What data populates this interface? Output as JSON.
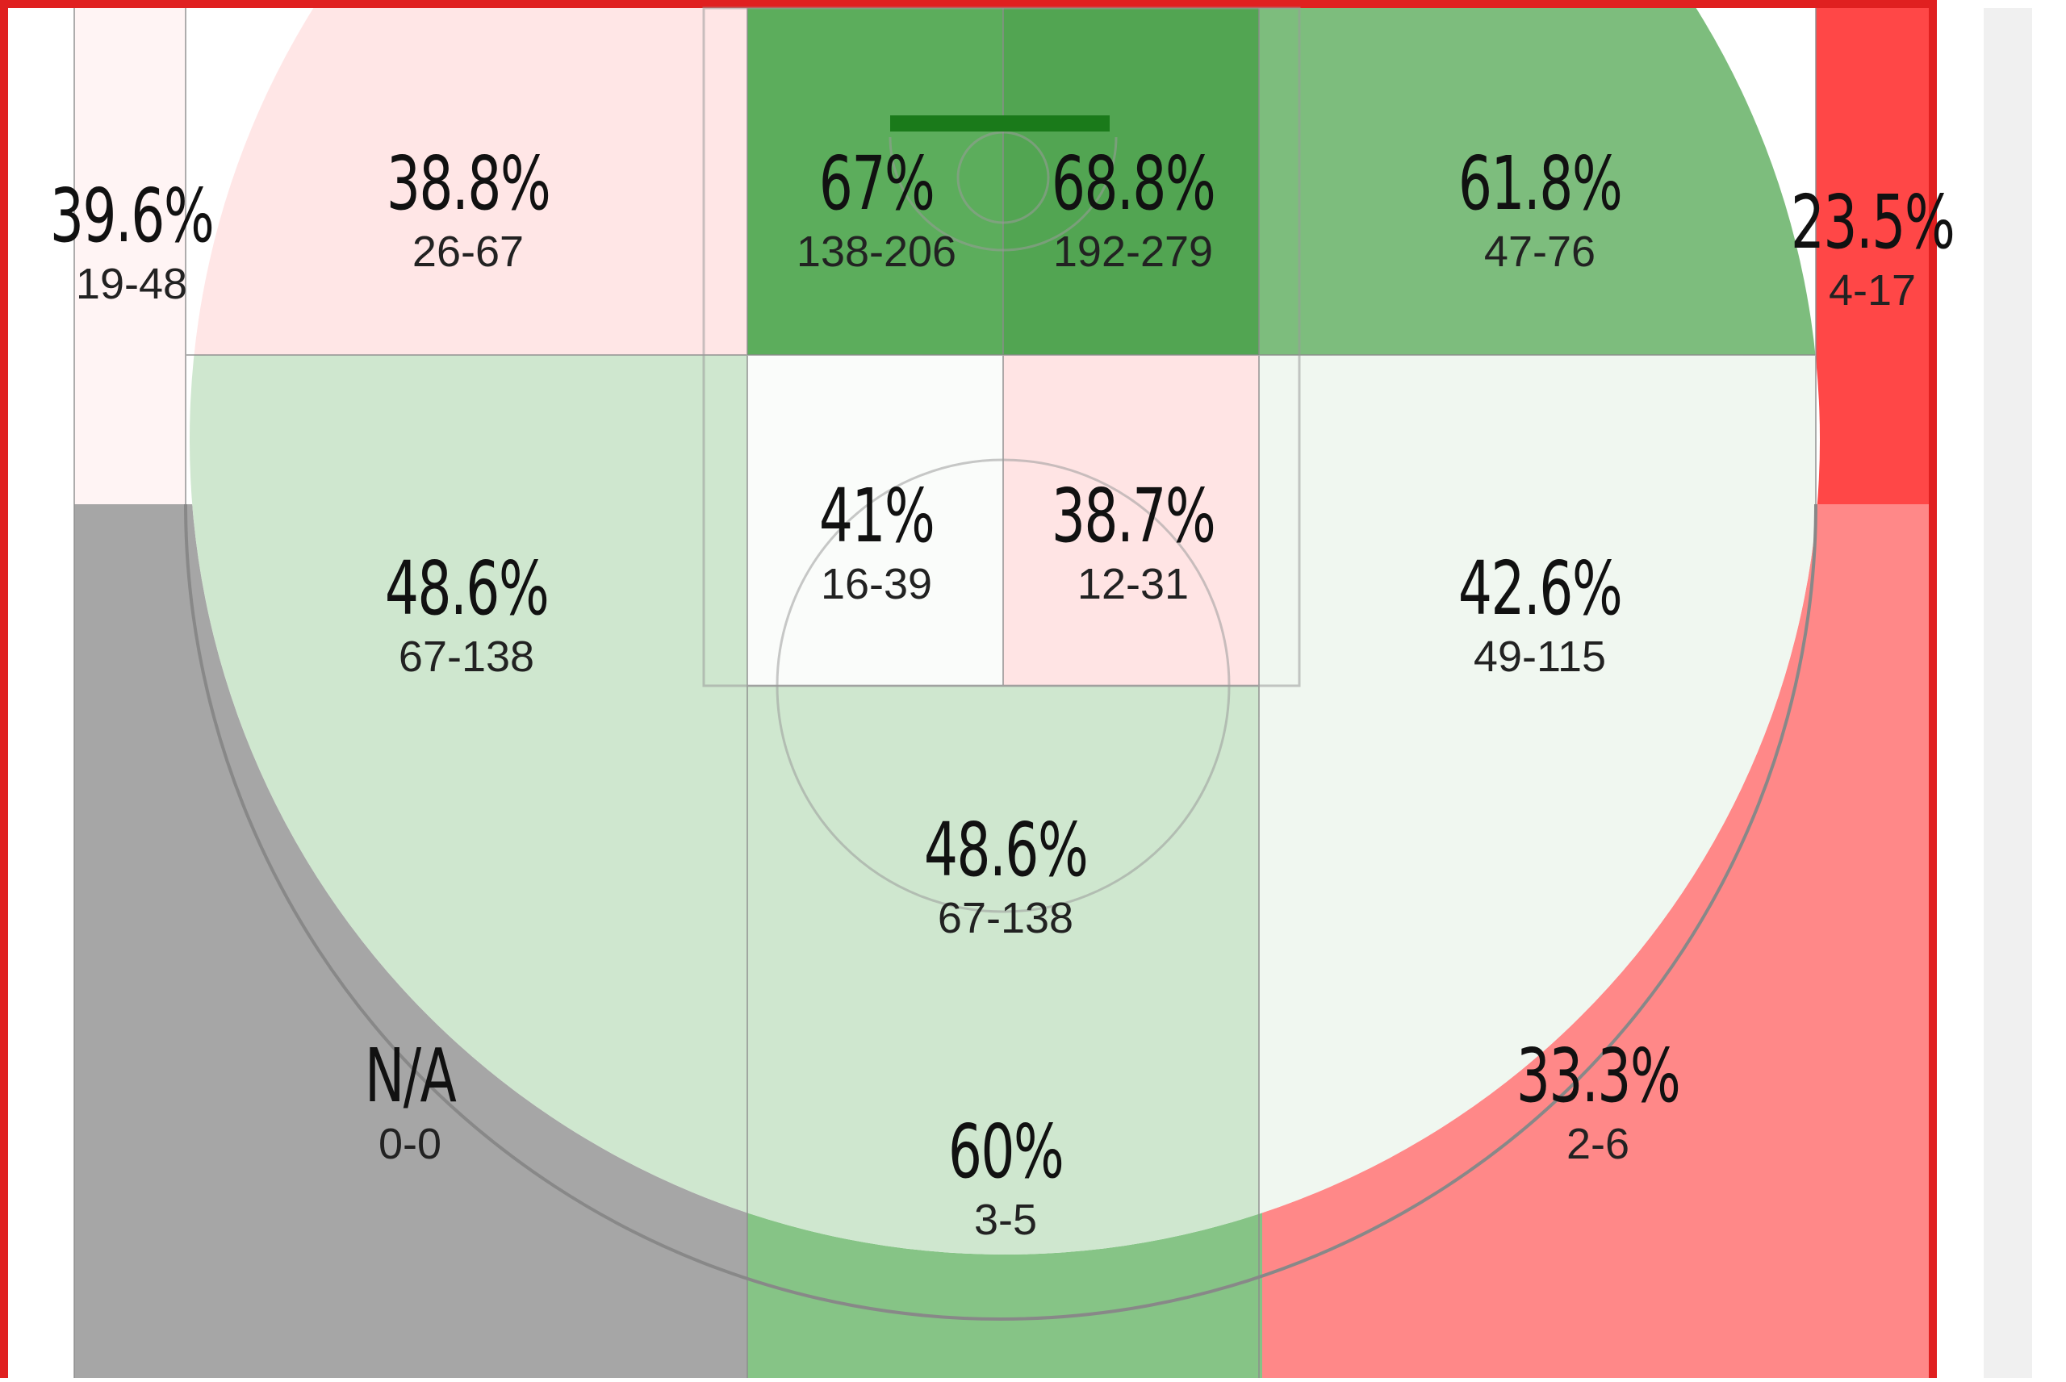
{
  "zones": [
    {
      "id": "left-corner-three",
      "pct": "39.6%",
      "record": "19-48",
      "color": "#fff4f4"
    },
    {
      "id": "left-wing-long-two",
      "pct": "38.8%",
      "record": "26-67",
      "color": "#ffe6e6"
    },
    {
      "id": "restricted-left",
      "pct": "67%",
      "record": "138-206",
      "color": "#5cad5c"
    },
    {
      "id": "restricted-right",
      "pct": "68.8%",
      "record": "192-279",
      "color": "#52a552"
    },
    {
      "id": "right-wing-long-two",
      "pct": "61.8%",
      "record": "47-76",
      "color": "#7dbd7d"
    },
    {
      "id": "right-corner-three",
      "pct": "23.5%",
      "record": "4-17",
      "color": "#ff4747"
    },
    {
      "id": "paint-left",
      "pct": "41%",
      "record": "16-39",
      "color": "#fafcfa"
    },
    {
      "id": "paint-right",
      "pct": "38.7%",
      "record": "12-31",
      "color": "#ffe4e4"
    },
    {
      "id": "left-elbow",
      "pct": "48.6%",
      "record": "67-138",
      "color": "#cfe7cf"
    },
    {
      "id": "right-elbow",
      "pct": "42.6%",
      "record": "49-115",
      "color": "#f0f7f0"
    },
    {
      "id": "top-key",
      "pct": "48.6%",
      "record": "67-138",
      "color": "#cfe7cf"
    },
    {
      "id": "left-above-break-three",
      "pct": "N/A",
      "record": "0-0",
      "color": "#a6a6a6"
    },
    {
      "id": "top-three",
      "pct": "60%",
      "record": "3-5",
      "color": "#86c486"
    },
    {
      "id": "right-above-break-three",
      "pct": "33.3%",
      "record": "2-6",
      "color": "#ff8888"
    }
  ],
  "colors": {
    "frame": "#e02020",
    "backboard": "#1a7a1a",
    "gutter": "#f0f0f0"
  }
}
